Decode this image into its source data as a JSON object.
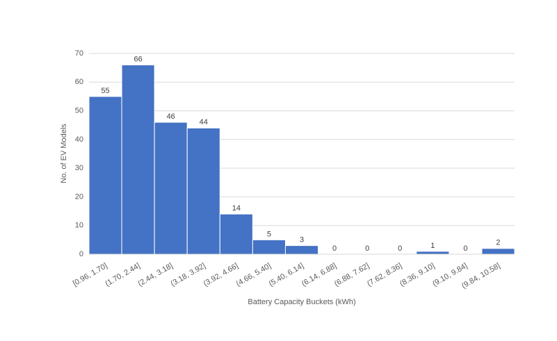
{
  "chart_data": {
    "type": "bar",
    "x_label": "Battery Capacity Buckets (kWh)",
    "y_label": "No. of EV Models",
    "categories": [
      "[0.96, 1.70]",
      "(1.70, 2.44]",
      "(2.44, 3.18]",
      "(3.18, 3.92]",
      "(3.92, 4.66]",
      "(4.66, 5.40]",
      "(5.40, 6.14]",
      "(6.14, 6.88]",
      "(6.88, 7.62]",
      "(7.62, 8.36]",
      "(8.36, 9.10]",
      "(9.10, 9.84]",
      "(9.84, 10.58]"
    ],
    "values": [
      55,
      66,
      46,
      44,
      14,
      5,
      3,
      0,
      0,
      0,
      1,
      0,
      2
    ],
    "color": "#4472c4",
    "ylim": [
      0,
      70
    ],
    "yticks": [
      0,
      10,
      20,
      30,
      40,
      50,
      60,
      70
    ],
    "grid": true
  }
}
